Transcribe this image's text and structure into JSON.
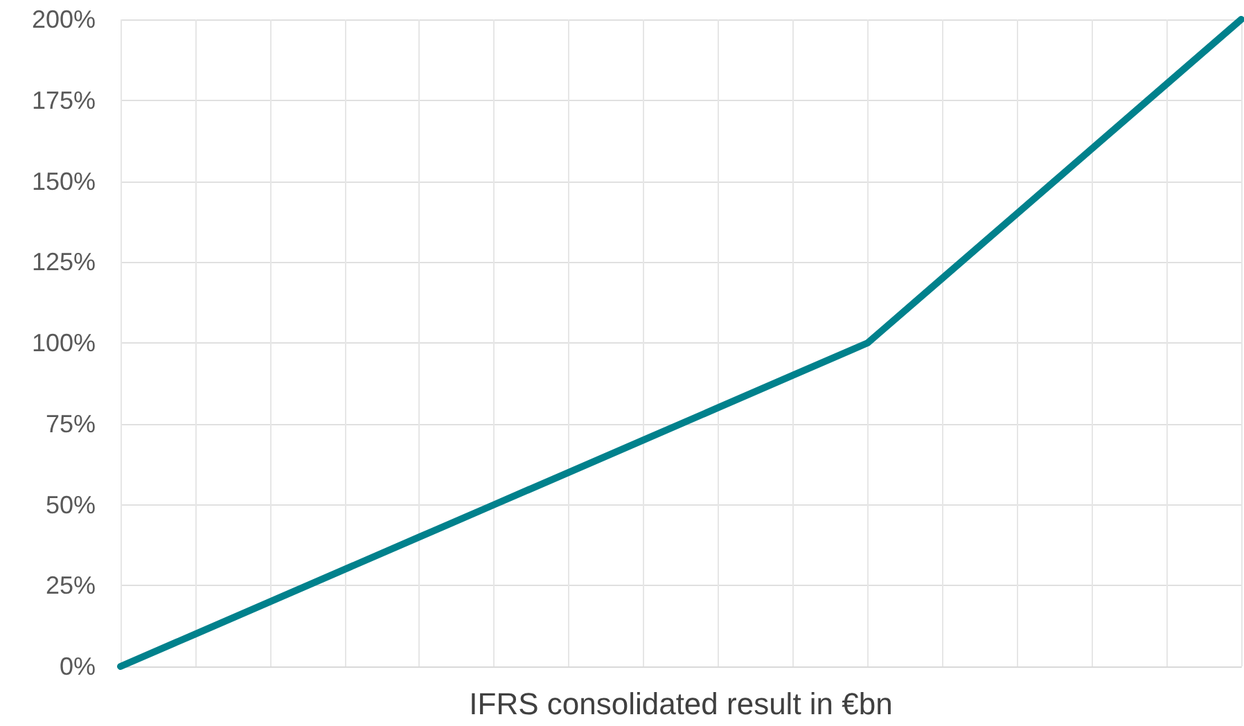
{
  "chart_data": {
    "type": "line",
    "xlabel": "IFRS consolidated result in €bn",
    "categories": [
      null,
      null,
      null,
      null,
      null,
      null,
      null,
      null,
      null,
      null,
      null,
      null,
      null,
      null,
      null,
      null
    ],
    "series": [
      {
        "color": "#00818c",
        "values": [
          0,
          10,
          20,
          30,
          40,
          50,
          60,
          70,
          80,
          90,
          100,
          120,
          140,
          160,
          180,
          200
        ]
      }
    ],
    "ylim": [
      0,
      200
    ],
    "yticks": [
      {
        "value": 0,
        "label": "0%"
      },
      {
        "value": 25,
        "label": "25%"
      },
      {
        "value": 50,
        "label": "50%"
      },
      {
        "value": 75,
        "label": "75%"
      },
      {
        "value": 100,
        "label": "100%"
      },
      {
        "value": 125,
        "label": "125%"
      },
      {
        "value": 150,
        "label": "150%"
      },
      {
        "value": 175,
        "label": "175%"
      },
      {
        "value": 200,
        "label": "200%"
      }
    ],
    "grid": true,
    "marker": "none",
    "line_style": "solid",
    "tick_labels": "y"
  }
}
